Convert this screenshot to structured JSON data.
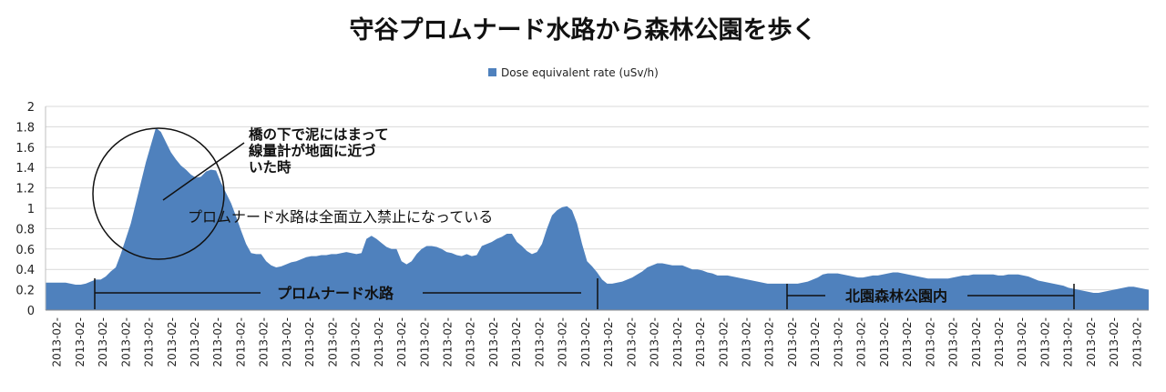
{
  "chart_data": {
    "type": "area",
    "title": "守谷プロムナード水路から森林公園を歩く",
    "legend": {
      "position": "top",
      "label": "Dose equivalent rate (uSv/h)",
      "color": "#4f81bd"
    },
    "ylim": [
      0,
      2
    ],
    "y_ticks": [
      "0",
      "0.2",
      "0.4",
      "0.6",
      "0.8",
      "1",
      "1.2",
      "1.4",
      "1.6",
      "1.8",
      "2"
    ],
    "grid": "horizontal",
    "x_tick_labels": [
      "2013-02-",
      "2013-02-",
      "2013-02-",
      "2013-02-",
      "2013-02-",
      "2013-02-",
      "2013-02-",
      "2013-02-",
      "2013-02-",
      "2013-02-",
      "2013-02-",
      "2013-02-",
      "2013-02-",
      "2013-02-",
      "2013-02-",
      "2013-02-",
      "2013-02-",
      "2013-02-",
      "2013-02-",
      "2013-02-",
      "2013-02-",
      "2013-02-",
      "2013-02-",
      "2013-02-",
      "2013-02-",
      "2013-02-",
      "2013-02-",
      "2013-02-",
      "2013-02-",
      "2013-02-",
      "2013-02-",
      "2013-02-",
      "2013-02-",
      "2013-02-",
      "2013-02-",
      "2013-02-",
      "2013-02-",
      "2013-02-",
      "2013-02-",
      "2013-02-",
      "2013-02-",
      "2013-02-",
      "2013-02-",
      "2013-02-",
      "2013-02-",
      "2013-02-",
      "2013-02-",
      "2013-02-"
    ],
    "series": [
      {
        "name": "Dose equivalent rate (uSv/h)",
        "values": [
          0.27,
          0.27,
          0.27,
          0.27,
          0.27,
          0.26,
          0.25,
          0.25,
          0.26,
          0.28,
          0.3,
          0.3,
          0.33,
          0.38,
          0.42,
          0.55,
          0.7,
          0.85,
          1.05,
          1.25,
          1.45,
          1.62,
          1.79,
          1.75,
          1.65,
          1.55,
          1.48,
          1.42,
          1.38,
          1.33,
          1.3,
          1.31,
          1.36,
          1.38,
          1.37,
          1.25,
          1.15,
          1.05,
          0.92,
          0.78,
          0.65,
          0.56,
          0.55,
          0.55,
          0.48,
          0.44,
          0.42,
          0.43,
          0.45,
          0.47,
          0.48,
          0.5,
          0.52,
          0.53,
          0.53,
          0.54,
          0.54,
          0.55,
          0.55,
          0.56,
          0.57,
          0.56,
          0.55,
          0.56,
          0.7,
          0.73,
          0.7,
          0.66,
          0.62,
          0.6,
          0.6,
          0.48,
          0.45,
          0.48,
          0.55,
          0.6,
          0.63,
          0.63,
          0.62,
          0.6,
          0.57,
          0.56,
          0.54,
          0.53,
          0.55,
          0.53,
          0.54,
          0.63,
          0.65,
          0.67,
          0.7,
          0.72,
          0.75,
          0.75,
          0.67,
          0.63,
          0.58,
          0.55,
          0.57,
          0.65,
          0.8,
          0.93,
          0.98,
          1.01,
          1.02,
          0.98,
          0.85,
          0.65,
          0.48,
          0.43,
          0.37,
          0.3,
          0.26,
          0.26,
          0.27,
          0.28,
          0.3,
          0.32,
          0.35,
          0.38,
          0.42,
          0.44,
          0.46,
          0.46,
          0.45,
          0.44,
          0.44,
          0.44,
          0.42,
          0.4,
          0.4,
          0.39,
          0.37,
          0.36,
          0.34,
          0.34,
          0.34,
          0.33,
          0.32,
          0.31,
          0.3,
          0.29,
          0.28,
          0.27,
          0.26,
          0.26,
          0.26,
          0.26,
          0.26,
          0.26,
          0.26,
          0.27,
          0.28,
          0.3,
          0.32,
          0.35,
          0.36,
          0.36,
          0.36,
          0.35,
          0.34,
          0.33,
          0.32,
          0.32,
          0.33,
          0.34,
          0.34,
          0.35,
          0.36,
          0.37,
          0.37,
          0.36,
          0.35,
          0.34,
          0.33,
          0.32,
          0.31,
          0.31,
          0.31,
          0.31,
          0.31,
          0.32,
          0.33,
          0.34,
          0.34,
          0.35,
          0.35,
          0.35,
          0.35,
          0.35,
          0.34,
          0.34,
          0.35,
          0.35,
          0.35,
          0.34,
          0.33,
          0.31,
          0.29,
          0.28,
          0.27,
          0.26,
          0.25,
          0.24,
          0.22,
          0.21,
          0.2,
          0.19,
          0.18,
          0.17,
          0.17,
          0.18,
          0.19,
          0.2,
          0.21,
          0.22,
          0.23,
          0.23,
          0.22,
          0.21,
          0.2
        ]
      }
    ],
    "annotations": {
      "circle_note": "橋の下で泥にはまって\n線量計が地面に近づ\nいた時",
      "closure_note": "プロムナード水路は全面立入禁止になっている",
      "section_1": "プロムナード水路",
      "section_2": "北園森林公園内"
    }
  }
}
